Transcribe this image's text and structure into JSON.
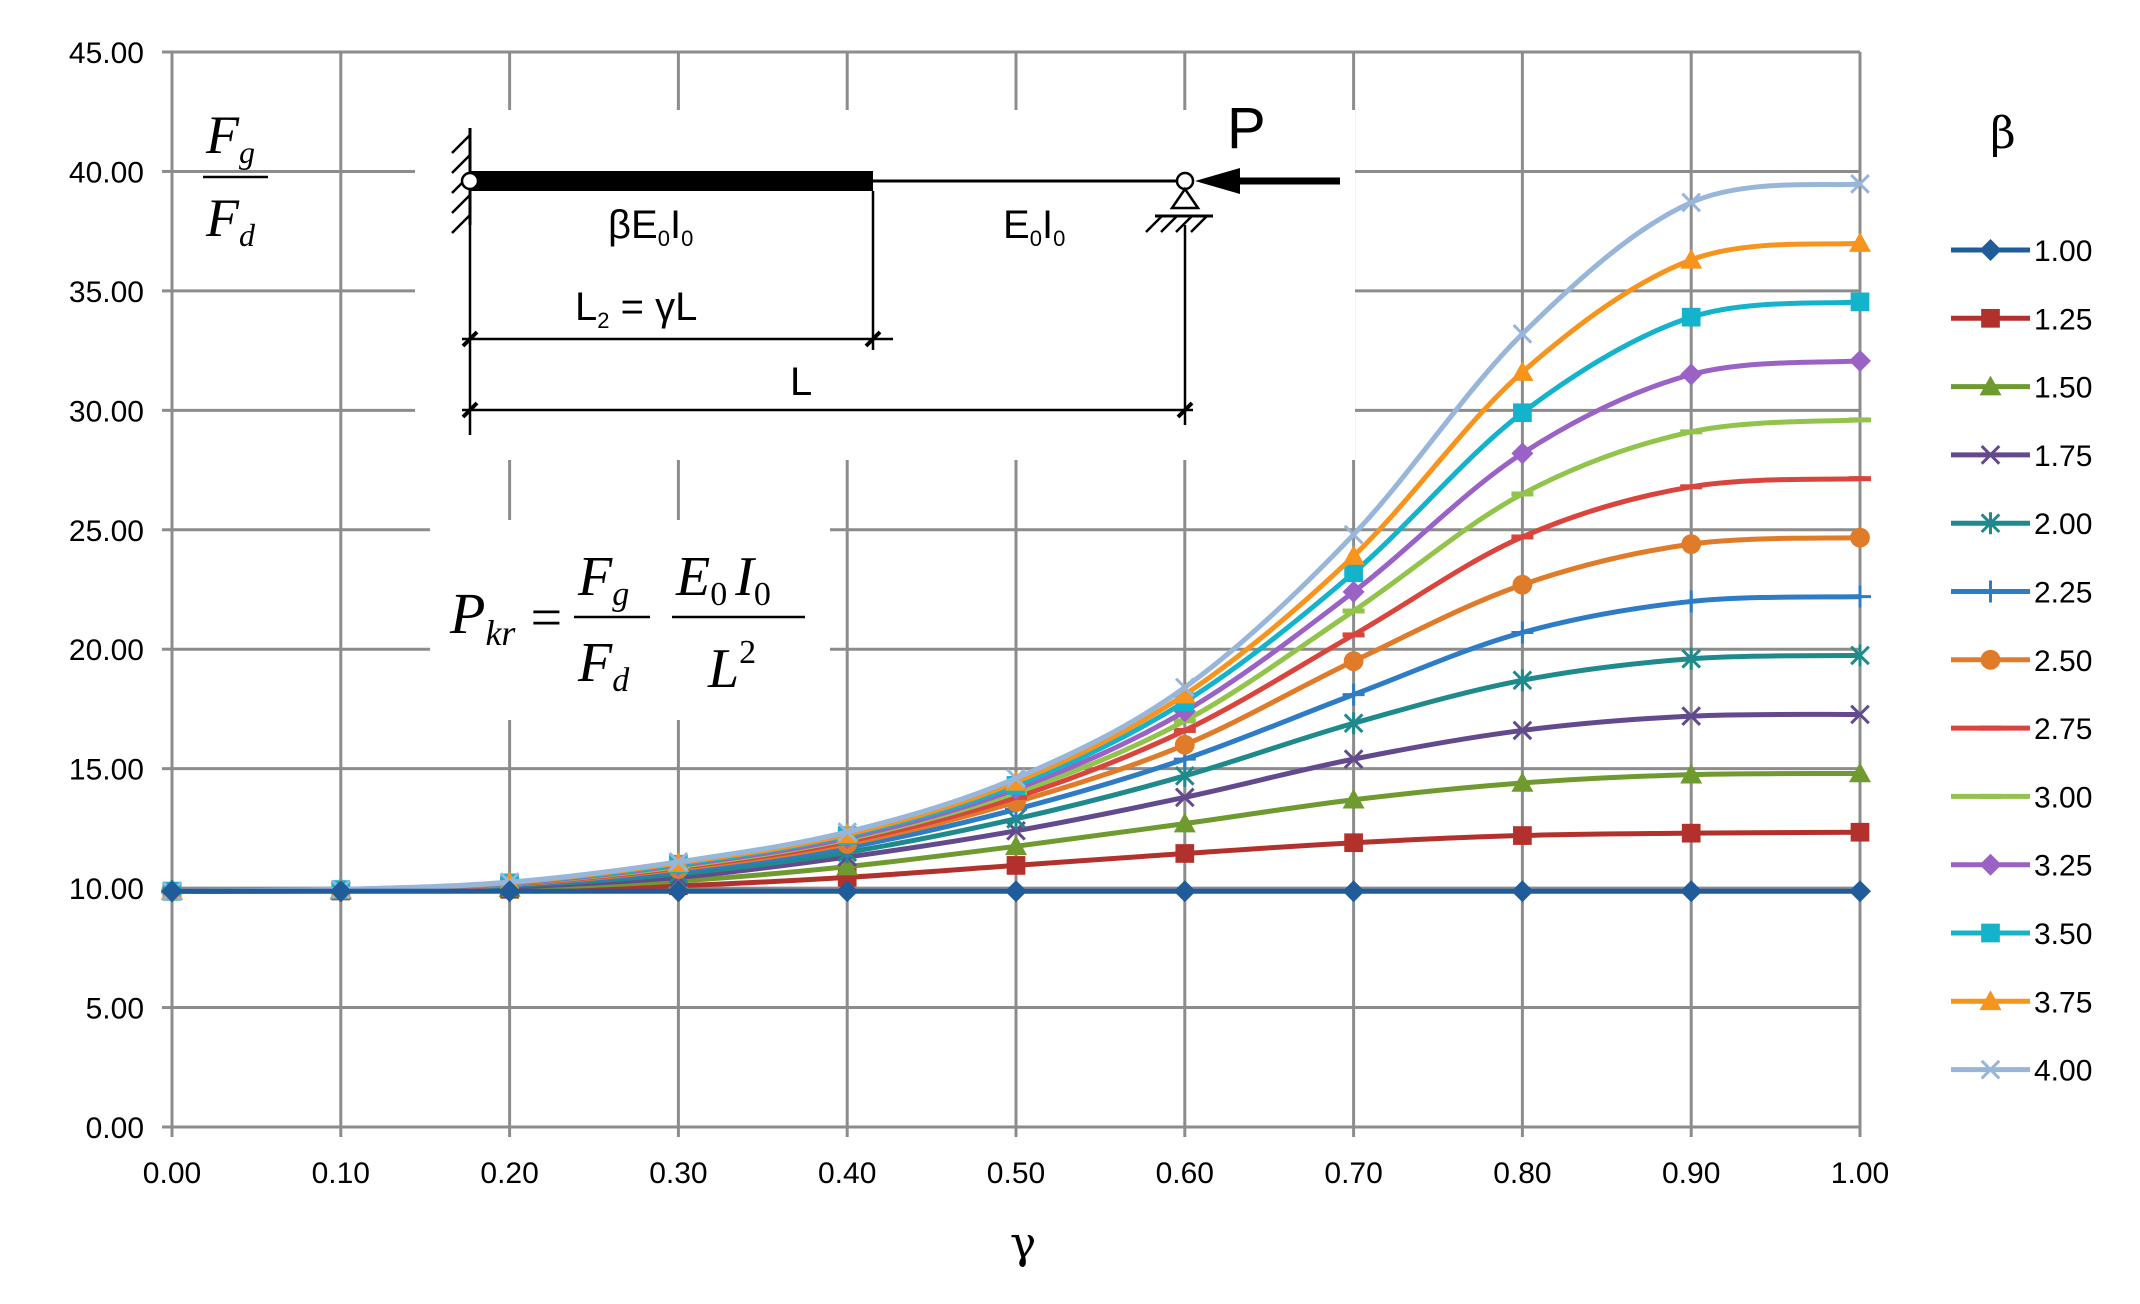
{
  "chart_data": {
    "type": "line",
    "title": "",
    "xlabel": "γ",
    "ylabel_num": "F",
    "ylabel_num_sub": "g",
    "ylabel_den": "F",
    "ylabel_den_sub": "d",
    "xlim": [
      0,
      1
    ],
    "ylim": [
      0,
      45
    ],
    "x_ticks": [
      "0.00",
      "0.10",
      "0.20",
      "0.30",
      "0.40",
      "0.50",
      "0.60",
      "0.70",
      "0.80",
      "0.90",
      "1.00"
    ],
    "y_ticks": [
      "0.00",
      "5.00",
      "10.00",
      "15.00",
      "20.00",
      "25.00",
      "30.00",
      "35.00",
      "40.00",
      "45.00"
    ],
    "grid": true,
    "x": [
      0,
      0.1,
      0.2,
      0.3,
      0.4,
      0.5,
      0.6,
      0.7,
      0.8,
      0.9,
      1.0
    ],
    "legend_title": "β",
    "series": [
      {
        "name": "1.00",
        "color": "#1f5c99",
        "marker": "diamond",
        "values": [
          9.87,
          9.87,
          9.87,
          9.87,
          9.87,
          9.87,
          9.87,
          9.87,
          9.87,
          9.87,
          9.87
        ]
      },
      {
        "name": "1.25",
        "color": "#b3312c",
        "marker": "square",
        "values": [
          9.87,
          9.88,
          9.95,
          10.1,
          10.45,
          10.95,
          11.45,
          11.9,
          12.2,
          12.3,
          12.34
        ]
      },
      {
        "name": "1.50",
        "color": "#6f9a2f",
        "marker": "triangle",
        "values": [
          9.87,
          9.89,
          10.0,
          10.3,
          10.9,
          11.75,
          12.7,
          13.7,
          14.4,
          14.75,
          14.8
        ]
      },
      {
        "name": "1.75",
        "color": "#634a8e",
        "marker": "x",
        "values": [
          9.87,
          9.9,
          10.05,
          10.45,
          11.3,
          12.4,
          13.8,
          15.4,
          16.6,
          17.2,
          17.27
        ]
      },
      {
        "name": "2.00",
        "color": "#1f8a8c",
        "marker": "star",
        "values": [
          9.87,
          9.9,
          10.1,
          10.6,
          11.5,
          12.9,
          14.7,
          16.9,
          18.7,
          19.6,
          19.74
        ]
      },
      {
        "name": "2.25",
        "color": "#2e7cc6",
        "marker": "plus",
        "values": [
          9.87,
          9.91,
          10.12,
          10.7,
          11.7,
          13.3,
          15.4,
          18.1,
          20.7,
          22.0,
          22.2
        ]
      },
      {
        "name": "2.50",
        "color": "#e07b2a",
        "marker": "circle",
        "values": [
          9.87,
          9.92,
          10.15,
          10.8,
          11.85,
          13.6,
          16.0,
          19.5,
          22.7,
          24.4,
          24.67
        ]
      },
      {
        "name": "2.75",
        "color": "#d9453d",
        "marker": "dash",
        "values": [
          9.87,
          9.92,
          10.17,
          10.85,
          11.95,
          13.8,
          16.6,
          20.6,
          24.7,
          26.8,
          27.14
        ]
      },
      {
        "name": "3.00",
        "color": "#92c34b",
        "marker": "dash",
        "values": [
          9.87,
          9.93,
          10.19,
          10.9,
          12.05,
          14.0,
          17.0,
          21.6,
          26.5,
          29.1,
          29.6
        ]
      },
      {
        "name": "3.25",
        "color": "#9b62c6",
        "marker": "diamond",
        "values": [
          9.87,
          9.93,
          10.2,
          10.95,
          12.1,
          14.15,
          17.4,
          22.4,
          28.2,
          31.5,
          32.07
        ]
      },
      {
        "name": "3.50",
        "color": "#14b3cc",
        "marker": "square",
        "values": [
          9.87,
          9.94,
          10.22,
          11.0,
          12.2,
          14.3,
          17.8,
          23.2,
          29.9,
          33.9,
          34.54
        ]
      },
      {
        "name": "3.75",
        "color": "#f7941d",
        "marker": "triangle",
        "values": [
          9.87,
          9.94,
          10.23,
          11.05,
          12.25,
          14.45,
          18.1,
          23.9,
          31.6,
          36.3,
          37.0
        ]
      },
      {
        "name": "4.00",
        "color": "#98b5da",
        "marker": "x",
        "values": [
          9.87,
          9.95,
          10.25,
          11.1,
          12.35,
          14.6,
          18.4,
          24.8,
          33.2,
          38.7,
          39.48
        ]
      }
    ]
  },
  "diagram": {
    "load_label": "P",
    "stiff_section_label": "βE",
    "stiff_section_sub1": "0",
    "stiff_section_mid": "I",
    "stiff_section_sub2": "0",
    "flex_section_label": "E",
    "flex_section_sub1": "0",
    "flex_section_mid": "I",
    "flex_section_sub2": "0",
    "length2_label_a": "L",
    "length2_sub": "2",
    "length2_label_b": " = γL",
    "length_label": "L"
  },
  "formula": {
    "lhs": "P",
    "lhs_sub": "kr",
    "equals": "=",
    "frac1_num": "F",
    "frac1_num_sub": "g",
    "frac1_den": "F",
    "frac1_den_sub": "d",
    "frac2_num_a": "E",
    "frac2_num_a_sub": "0",
    "frac2_num_b": "I",
    "frac2_num_b_sub": "0",
    "frac2_den": "L",
    "frac2_den_sup": "2"
  }
}
